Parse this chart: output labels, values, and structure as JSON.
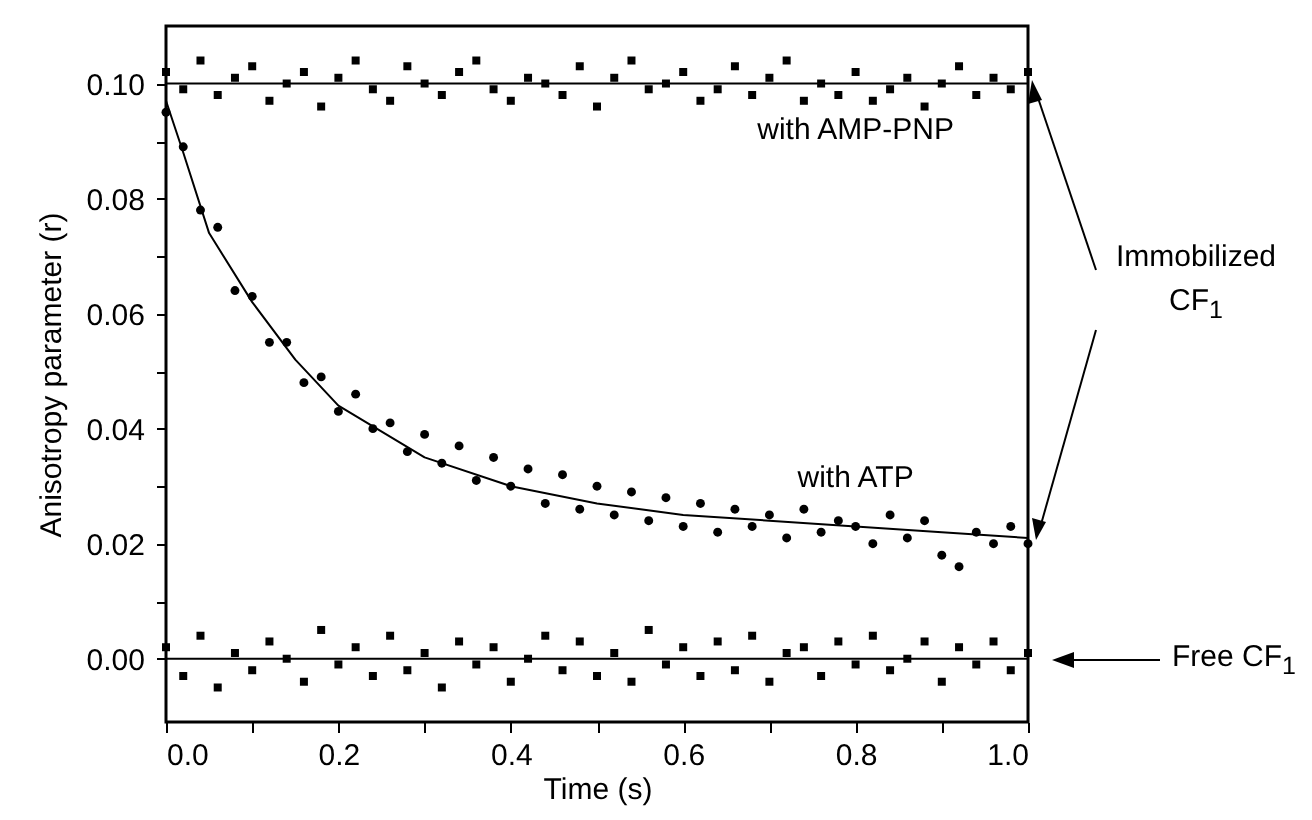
{
  "chart_data": {
    "type": "scatter",
    "xlabel": "Time (s)",
    "ylabel": "Anisotropy parameter (r)",
    "x": [
      0,
      0.02,
      0.04,
      0.06,
      0.08,
      0.1,
      0.12,
      0.14,
      0.16,
      0.18,
      0.2,
      0.22,
      0.24,
      0.26,
      0.28,
      0.3,
      0.32,
      0.34,
      0.36,
      0.38,
      0.4,
      0.42,
      0.44,
      0.46,
      0.48,
      0.5,
      0.52,
      0.54,
      0.56,
      0.58,
      0.6,
      0.62,
      0.64,
      0.66,
      0.68,
      0.7,
      0.72,
      0.74,
      0.76,
      0.78,
      0.8,
      0.82,
      0.84,
      0.86,
      0.88,
      0.9,
      0.92,
      0.94,
      0.96,
      0.98,
      1.0
    ],
    "series": [
      {
        "name": "with AMP-PNP",
        "color": "#000000",
        "marker": "square",
        "values": [
          0.102,
          0.099,
          0.104,
          0.098,
          0.101,
          0.103,
          0.097,
          0.1,
          0.102,
          0.096,
          0.101,
          0.104,
          0.099,
          0.097,
          0.103,
          0.1,
          0.098,
          0.102,
          0.104,
          0.099,
          0.097,
          0.101,
          0.1,
          0.098,
          0.103,
          0.096,
          0.101,
          0.104,
          0.099,
          0.1,
          0.102,
          0.097,
          0.099,
          0.103,
          0.098,
          0.101,
          0.104,
          0.097,
          0.1,
          0.098,
          0.102,
          0.097,
          0.099,
          0.101,
          0.096,
          0.1,
          0.103,
          0.098,
          0.101,
          0.099,
          0.102
        ]
      },
      {
        "name": "with ATP",
        "color": "#000000",
        "marker": "circle",
        "values": [
          0.095,
          0.089,
          0.078,
          0.075,
          0.064,
          0.063,
          0.055,
          0.055,
          0.048,
          0.049,
          0.043,
          0.046,
          0.04,
          0.041,
          0.036,
          0.039,
          0.034,
          0.037,
          0.031,
          0.035,
          0.03,
          0.033,
          0.027,
          0.032,
          0.026,
          0.03,
          0.025,
          0.029,
          0.024,
          0.028,
          0.023,
          0.027,
          0.022,
          0.026,
          0.023,
          0.025,
          0.021,
          0.026,
          0.022,
          0.024,
          0.023,
          0.02,
          0.025,
          0.021,
          0.024,
          0.018,
          0.016,
          0.022,
          0.02,
          0.023,
          0.02
        ]
      },
      {
        "color": "#000000",
        "marker": "square",
        "values": [
          0.002,
          -0.003,
          0.004,
          -0.005,
          0.001,
          -0.002,
          0.003,
          0.0,
          -0.004,
          0.005,
          -0.001,
          0.002,
          -0.003,
          0.004,
          -0.002,
          0.001,
          -0.005,
          0.003,
          -0.001,
          0.002,
          -0.004,
          0.0,
          0.004,
          -0.002,
          0.003,
          -0.003,
          0.001,
          -0.004,
          0.005,
          -0.001,
          0.002,
          -0.003,
          0.003,
          -0.002,
          0.004,
          -0.004,
          0.001,
          0.002,
          -0.003,
          0.003,
          -0.001,
          0.004,
          -0.002,
          0.0,
          0.003,
          -0.004,
          0.002,
          -0.001,
          0.003,
          -0.002,
          0.001
        ]
      },
      {
        "type": "line",
        "color": "#000000",
        "x": [
          0,
          1.0
        ],
        "values": [
          0.1,
          0.1
        ]
      },
      {
        "type": "line",
        "color": "#000000",
        "x": [
          0,
          0.02,
          0.05,
          0.1,
          0.15,
          0.2,
          0.3,
          0.4,
          0.5,
          0.6,
          0.7,
          0.8,
          0.9,
          1.0
        ],
        "values": [
          0.097,
          0.088,
          0.074,
          0.062,
          0.052,
          0.044,
          0.035,
          0.03,
          0.027,
          0.025,
          0.024,
          0.023,
          0.022,
          0.021
        ]
      },
      {
        "type": "line",
        "color": "#000000",
        "x": [
          0,
          1.0
        ],
        "values": [
          0,
          0
        ]
      }
    ],
    "xlim": [
      0,
      1.0
    ],
    "xticks": [
      {
        "value": 0,
        "label": "0.0"
      },
      {
        "value": 0.1,
        "label": null
      },
      {
        "value": 0.2,
        "label": "0.2"
      },
      {
        "value": 0.3,
        "label": null
      },
      {
        "value": 0.4,
        "label": "0.4"
      },
      {
        "value": 0.5,
        "label": null
      },
      {
        "value": 0.6,
        "label": "0.6"
      },
      {
        "value": 0.7,
        "label": null
      },
      {
        "value": 0.8,
        "label": "0.8"
      },
      {
        "value": 0.9,
        "label": null
      },
      {
        "value": 1.0,
        "label": "1.0"
      }
    ],
    "ylim": [
      -0.011,
      0.11
    ],
    "yticks": [
      {
        "value": 0,
        "label": "0.00"
      },
      {
        "value": 0.01,
        "label": null
      },
      {
        "value": 0.02,
        "label": "0.02"
      },
      {
        "value": 0.03,
        "label": null
      },
      {
        "value": 0.04,
        "label": "0.04"
      },
      {
        "value": 0.05,
        "label": null
      },
      {
        "value": 0.06,
        "label": "0.06"
      },
      {
        "value": 0.07,
        "label": null
      },
      {
        "value": 0.08,
        "label": "0.08"
      },
      {
        "value": 0.09,
        "label": null
      },
      {
        "value": 0.1,
        "label": "0.10"
      }
    ],
    "annotations": [
      "Immobilized CF$_{1}$",
      "Free CF$_{1}$"
    ]
  }
}
